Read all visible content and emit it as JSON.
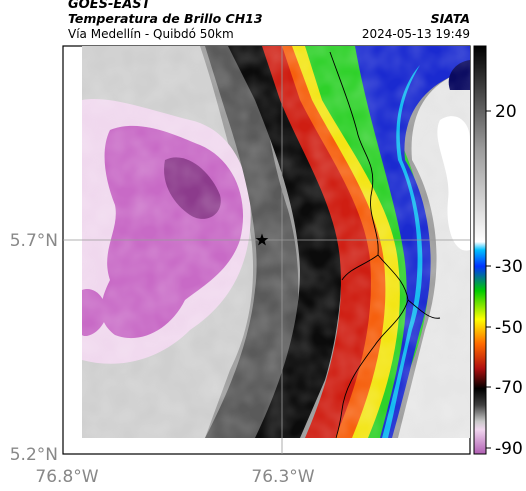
{
  "header": {
    "satellite": "GOES-EAST",
    "product": "Temperatura de Brillo CH13",
    "organization": "SIATA",
    "region": "Vía Medellín - Quibdó 50km",
    "timestamp": "2024-05-13 19:49"
  },
  "map": {
    "lat_ticks": [
      "5.7°N",
      "5.2°N"
    ],
    "lon_ticks": [
      "76.8°W",
      "76.3°W"
    ],
    "marker": "star",
    "marker_color": "#000000"
  },
  "colorbar": {
    "ticks": [
      "20",
      "-30",
      "-50",
      "-70",
      "-90"
    ],
    "colors": [
      "#b56ab8",
      "#f2d8ef",
      "#555555",
      "#000000",
      "#cc1e12",
      "#f44b0e",
      "#ffff00",
      "#00dd00",
      "#0000ff",
      "#00b5ff",
      "#f0f0f0",
      "#000000"
    ]
  }
}
